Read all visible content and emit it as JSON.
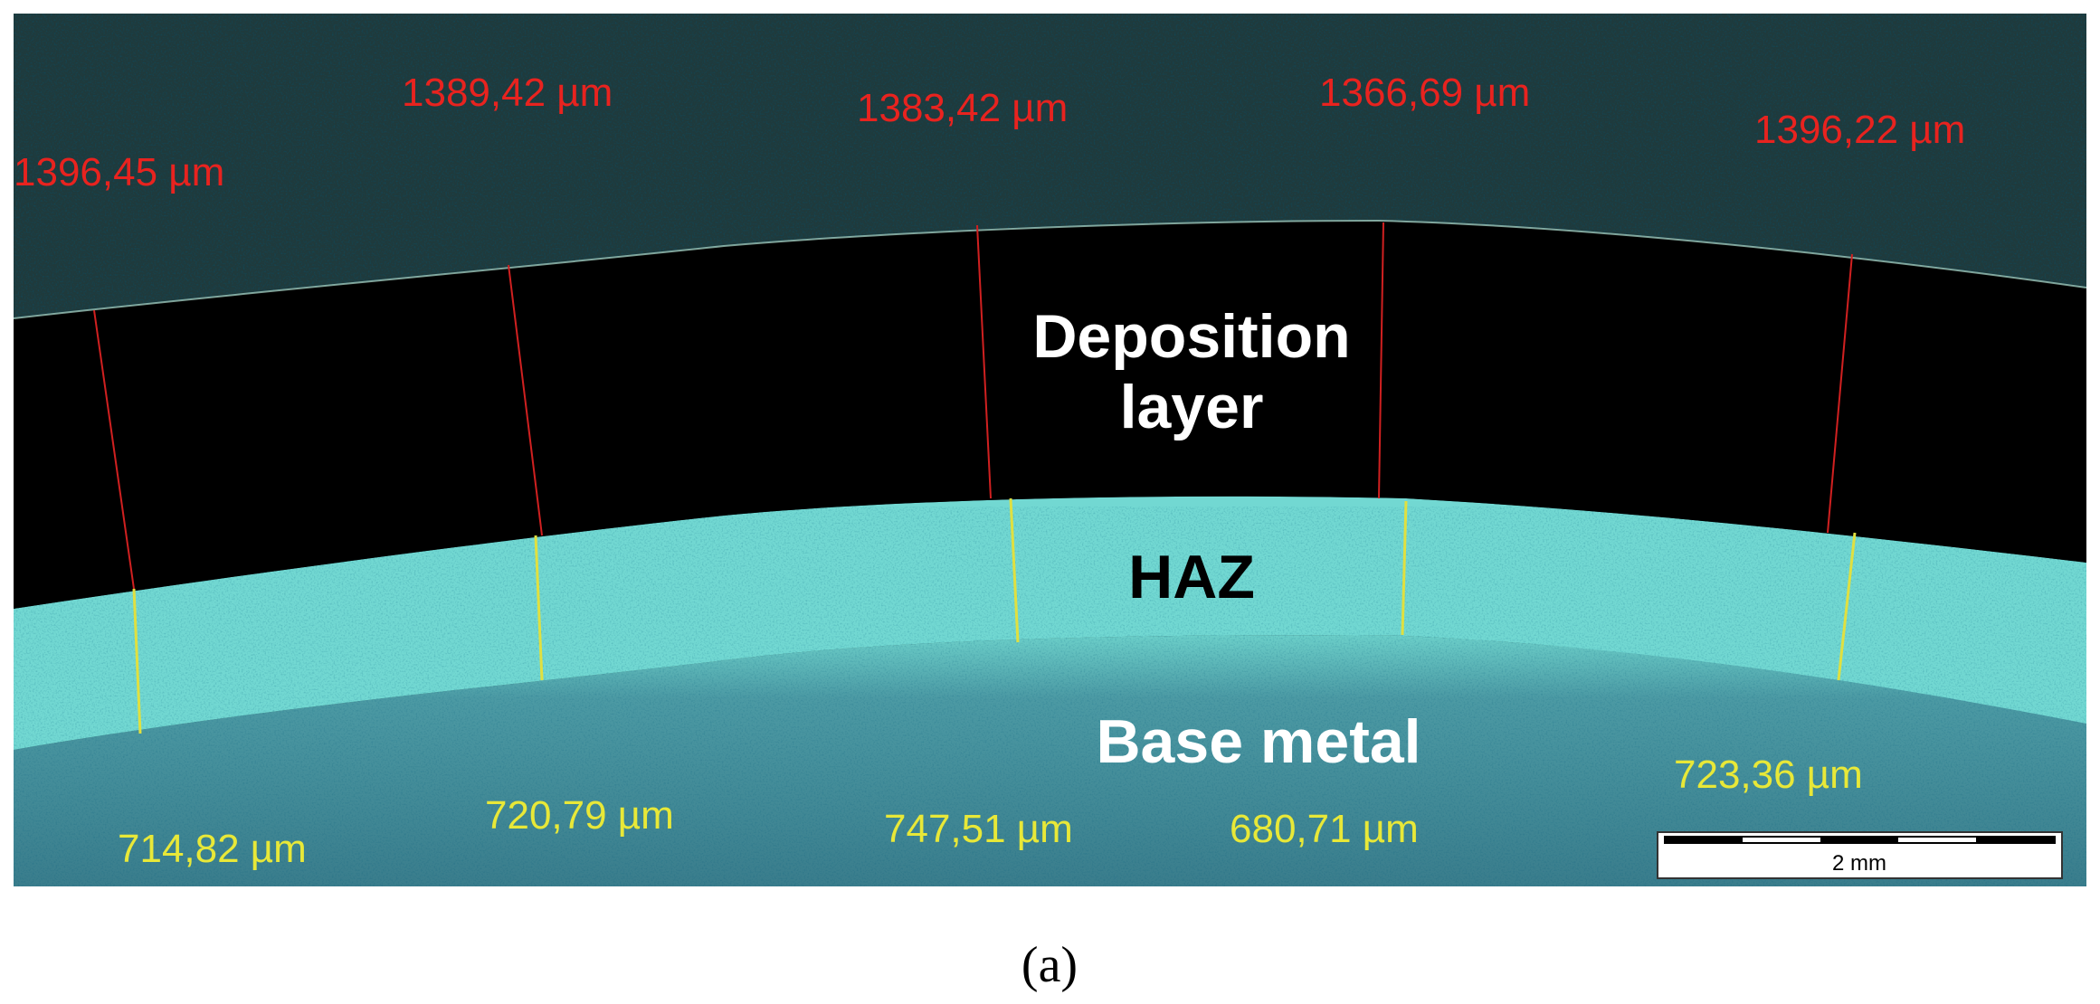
{
  "figure": {
    "deposition_thickness": [
      "1396,45 µm",
      "1389,42 µm",
      "1383,42 µm",
      "1366,69 µm",
      "1396,22 µm"
    ],
    "haz_thickness": [
      "714,82 µm",
      "720,79 µm",
      "747,51 µm",
      "680,71 µm",
      "723,36 µm"
    ],
    "regions": {
      "deposition": [
        "Deposition",
        "layer"
      ],
      "haz": "HAZ",
      "base": "Base metal"
    },
    "scale_bar": "2 mm",
    "caption": "(a)"
  }
}
